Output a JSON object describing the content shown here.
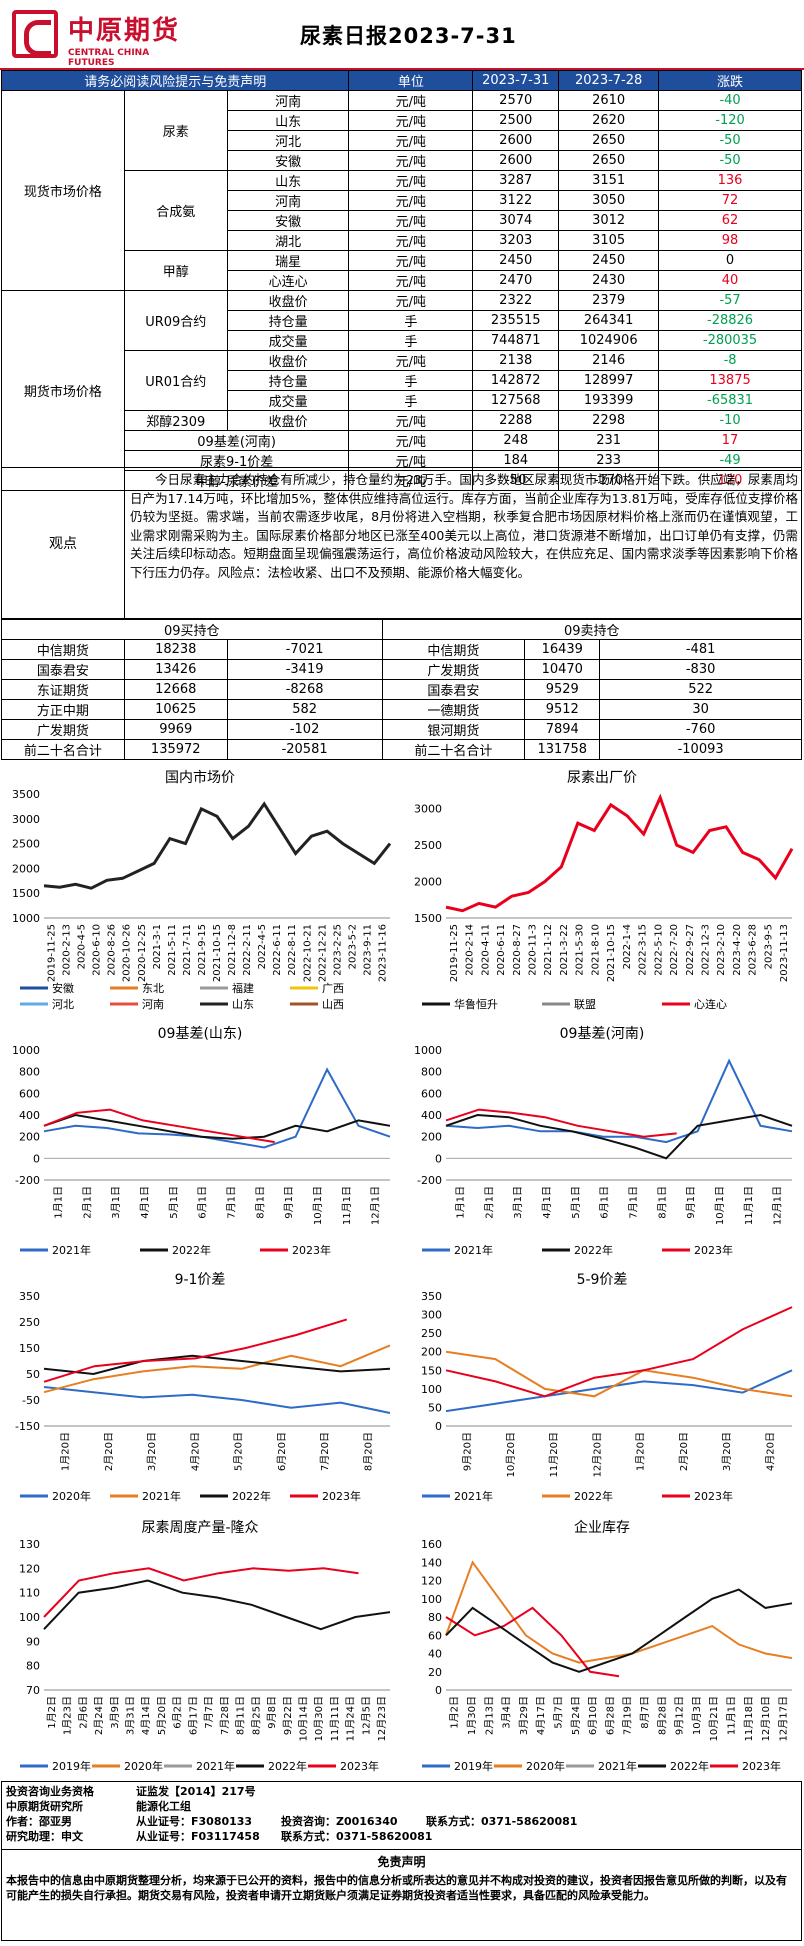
{
  "header": {
    "logo_cn": "中原期货",
    "logo_en": "CENTRAL CHINA FUTURES",
    "title": "尿素日报2023-7-31"
  },
  "table": {
    "notice": "请务必阅读风险提示与免责声明",
    "col_unit": "单位",
    "col_d1": "2023-7-31",
    "col_d2": "2023-7-28",
    "col_chg": "涨跌",
    "spot_label": "现货市场价格",
    "futures_label": "期货市场价格",
    "spot": [
      {
        "g": "尿素",
        "rows": [
          [
            "河南",
            "元/吨",
            "2570",
            "2610",
            "-40"
          ],
          [
            "山东",
            "元/吨",
            "2500",
            "2620",
            "-120"
          ],
          [
            "河北",
            "元/吨",
            "2600",
            "2650",
            "-50"
          ],
          [
            "安徽",
            "元/吨",
            "2600",
            "2650",
            "-50"
          ]
        ]
      },
      {
        "g": "合成氨",
        "rows": [
          [
            "山东",
            "元/吨",
            "3287",
            "3151",
            "136"
          ],
          [
            "河南",
            "元/吨",
            "3122",
            "3050",
            "72"
          ],
          [
            "安徽",
            "元/吨",
            "3074",
            "3012",
            "62"
          ],
          [
            "湖北",
            "元/吨",
            "3203",
            "3105",
            "98"
          ]
        ]
      },
      {
        "g": "甲醇",
        "rows": [
          [
            "瑞星",
            "元/吨",
            "2450",
            "2450",
            "0"
          ],
          [
            "心连心",
            "元/吨",
            "2470",
            "2430",
            "40"
          ]
        ]
      }
    ],
    "futures": [
      {
        "g": "UR09合约",
        "rows": [
          [
            "收盘价",
            "元/吨",
            "2322",
            "2379",
            "-57"
          ],
          [
            "持仓量",
            "手",
            "235515",
            "264341",
            "-28826"
          ],
          [
            "成交量",
            "手",
            "744871",
            "1024906",
            "-280035"
          ]
        ]
      },
      {
        "g": "UR01合约",
        "rows": [
          [
            "收盘价",
            "元/吨",
            "2138",
            "2146",
            "-8"
          ],
          [
            "持仓量",
            "手",
            "142872",
            "128997",
            "13875"
          ],
          [
            "成交量",
            "手",
            "127568",
            "193399",
            "-65831"
          ]
        ]
      },
      {
        "g": "郑醇2309",
        "rows": [
          [
            "收盘价",
            "元/吨",
            "2288",
            "2298",
            "-10"
          ]
        ]
      }
    ],
    "spreads": [
      [
        "09基差(河南)",
        "元/吨",
        "248",
        "231",
        "17"
      ],
      [
        "尿素9-1价差",
        "元/吨",
        "184",
        "233",
        "-49"
      ],
      [
        "甲醇-尿素价差",
        "元/吨",
        "-50",
        "-170",
        "120"
      ]
    ]
  },
  "observation": {
    "label": "观点",
    "text": "今日尿素主力合约持仓有所减少，持仓量约为23万手。国内多数地区尿素现货市场价格开始下跌。供应端，尿素周均日产为17.14万吨，环比增加5%，整体供应维持高位运行。库存方面，当前企业库存为13.81万吨，受库存低位支撑价格仍较为坚挺。需求端，当前农需逐步收尾，8月份将进入空档期，秋季复合肥市场因原材料价格上涨而仍在谨慎观望，工业需求刚需采购为主。国际尿素价格部分地区已涨至400美元以上高位，港口货源港不断增加，出口订单仍有支撑，仍需关注后续印标动态。短期盘面呈现偏强震荡运行，高位价格波动风险较大，在供应充足、国内需求淡季等因素影响下价格下行压力仍存。风险点：法检收紧、出口不及预期、能源价格大幅变化。"
  },
  "positions": {
    "buy_title": "09买持仓",
    "sell_title": "09卖持仓",
    "rows": [
      [
        "中信期货",
        "18238",
        "-7021",
        "中信期货",
        "16439",
        "-481"
      ],
      [
        "国泰君安",
        "13426",
        "-3419",
        "广发期货",
        "10470",
        "-830"
      ],
      [
        "东证期货",
        "12668",
        "-8268",
        "国泰君安",
        "9529",
        "522"
      ],
      [
        "方正中期",
        "10625",
        "582",
        "一德期货",
        "9512",
        "30"
      ],
      [
        "广发期货",
        "9969",
        "-102",
        "银河期货",
        "7894",
        "-760"
      ],
      [
        "前二十名合计",
        "135972",
        "-20581",
        "前二十名合计",
        "131758",
        "-10093"
      ]
    ]
  },
  "colors": {
    "up": "#e8001c",
    "down": "#00a050",
    "header_blue": "#1f4e9c",
    "brand": "#c8102e"
  },
  "charts": [
    {
      "id": "c1",
      "title": "国内市场价",
      "type": "line",
      "ylim": [
        1000,
        3500
      ],
      "yticks": [
        "1000",
        "1500",
        "2000",
        "2500",
        "3000",
        "3500"
      ],
      "xticks": [
        "2019-11-25",
        "2020-2-13",
        "2020-4-5",
        "2020-6-10",
        "2020-8-26",
        "2020-10-26",
        "2020-12-25",
        "2021-3-1",
        "2021-5-11",
        "2021-7-11",
        "2021-9-15",
        "2021-10-15",
        "2021-12-8",
        "2022-2-11",
        "2022-4-5",
        "2022-6-11",
        "2022-8-11",
        "2022-10-21",
        "2022-12-21",
        "2023-2-25",
        "2023-5-2",
        "2023-9-11",
        "2023-11-16"
      ],
      "legend": [
        [
          "安徽",
          "#1f4e9c"
        ],
        [
          "东北",
          "#e67e22"
        ],
        [
          "福建",
          "#999999"
        ],
        [
          "广西",
          "#f1c40f"
        ],
        [
          "河北",
          "#5dade2"
        ],
        [
          "河南",
          "#e74c3c"
        ],
        [
          "山东",
          "#222222"
        ],
        [
          "山西",
          "#a0522d"
        ]
      ],
      "series": [
        {
          "name": "山东",
          "values": [
            1650,
            1620,
            1680,
            1600,
            1760,
            1800,
            1950,
            2100,
            2600,
            2500,
            3200,
            3050,
            2600,
            2850,
            3300,
            2800,
            2300,
            2650,
            2750,
            2500,
            2300,
            2100,
            2500
          ]
        }
      ]
    },
    {
      "id": "c2",
      "title": "尿素出厂价",
      "type": "line",
      "ylim": [
        1500,
        3200
      ],
      "yticks": [
        "1500",
        "2000",
        "2500",
        "3000"
      ],
      "xticks": [
        "2019-11-25",
        "2020-2-14",
        "2020-4-11",
        "2020-6-11",
        "2020-8-27",
        "2020-11-3",
        "2021-1-12",
        "2021-3-22",
        "2021-5-30",
        "2021-8-10",
        "2021-10-15",
        "2022-1-4",
        "2022-3-15",
        "2022-5-10",
        "2022-7-20",
        "2022-9-27",
        "2022-12-3",
        "2023-2-10",
        "2023-4-20",
        "2023-6-28",
        "2023-9-5",
        "2023-11-13"
      ],
      "legend": [
        [
          "华鲁恒升",
          "#111111"
        ],
        [
          "联盟",
          "#888888"
        ],
        [
          "心连心",
          "#e8001c"
        ]
      ],
      "series": [
        {
          "name": "心连心",
          "values": [
            1650,
            1600,
            1700,
            1650,
            1800,
            1850,
            2000,
            2200,
            2800,
            2700,
            3050,
            2900,
            2650,
            3150,
            2500,
            2400,
            2700,
            2750,
            2400,
            2300,
            2050,
            2450
          ]
        }
      ]
    },
    {
      "id": "c3",
      "title": "09基差(山东)",
      "type": "line",
      "ylim": [
        -200,
        1000
      ],
      "yticks": [
        "-200",
        "0",
        "200",
        "400",
        "600",
        "800",
        "1000"
      ],
      "xticks": [
        "1月1日",
        "2月1日",
        "3月1日",
        "4月1日",
        "5月1日",
        "6月1日",
        "7月1日",
        "8月1日",
        "9月1日",
        "10月1日",
        "11月1日",
        "12月1日"
      ],
      "legend": [
        [
          "2021年",
          "#2e6bc6"
        ],
        [
          "2022年",
          "#111111"
        ],
        [
          "2023年",
          "#e8001c"
        ]
      ],
      "series": [
        {
          "name": "2021年",
          "values": [
            250,
            300,
            280,
            230,
            220,
            200,
            150,
            100,
            200,
            820,
            300,
            200
          ]
        },
        {
          "name": "2022年",
          "values": [
            300,
            400,
            350,
            300,
            250,
            200,
            180,
            200,
            300,
            250,
            350,
            300
          ]
        },
        {
          "name": "2023年",
          "values": [
            300,
            420,
            450,
            350,
            300,
            250,
            200,
            150
          ]
        }
      ]
    },
    {
      "id": "c4",
      "title": "09基差(河南)",
      "type": "line",
      "ylim": [
        -200,
        1000
      ],
      "yticks": [
        "-200",
        "0",
        "200",
        "400",
        "600",
        "800",
        "1000"
      ],
      "xticks": [
        "1月1日",
        "2月1日",
        "3月1日",
        "4月1日",
        "5月1日",
        "6月1日",
        "7月1日",
        "8月1日",
        "9月1日",
        "10月1日",
        "11月1日",
        "12月1日"
      ],
      "legend": [
        [
          "2021年",
          "#2e6bc6"
        ],
        [
          "2022年",
          "#111111"
        ],
        [
          "2023年",
          "#e8001c"
        ]
      ],
      "series": [
        {
          "name": "2021年",
          "values": [
            300,
            280,
            300,
            250,
            250,
            200,
            200,
            150,
            250,
            900,
            300,
            250
          ]
        },
        {
          "name": "2022年",
          "values": [
            300,
            400,
            380,
            300,
            250,
            180,
            100,
            0,
            300,
            350,
            400,
            300
          ]
        },
        {
          "name": "2023年",
          "values": [
            350,
            450,
            420,
            380,
            300,
            250,
            200,
            230
          ]
        }
      ]
    },
    {
      "id": "c5",
      "title": "9-1价差",
      "type": "line",
      "ylim": [
        -150,
        350
      ],
      "yticks": [
        "-150",
        "-50",
        "50",
        "150",
        "250",
        "350"
      ],
      "xticks": [
        "1月20日",
        "2月20日",
        "3月20日",
        "4月20日",
        "5月20日",
        "6月20日",
        "7月20日",
        "8月20日"
      ],
      "legend": [
        [
          "2020年",
          "#2e6bc6"
        ],
        [
          "2021年",
          "#e67e22"
        ],
        [
          "2022年",
          "#111111"
        ],
        [
          "2023年",
          "#e8001c"
        ]
      ],
      "series": [
        {
          "name": "2020年",
          "values": [
            0,
            -20,
            -40,
            -30,
            -50,
            -80,
            -60,
            -100
          ]
        },
        {
          "name": "2021年",
          "values": [
            -20,
            30,
            60,
            80,
            70,
            120,
            80,
            160
          ]
        },
        {
          "name": "2022年",
          "values": [
            70,
            50,
            100,
            120,
            100,
            80,
            60,
            70
          ]
        },
        {
          "name": "2023年",
          "values": [
            20,
            80,
            100,
            110,
            150,
            200,
            260
          ]
        }
      ]
    },
    {
      "id": "c6",
      "title": "5-9价差",
      "type": "line",
      "ylim": [
        0,
        350
      ],
      "yticks": [
        "0",
        "50",
        "100",
        "150",
        "200",
        "250",
        "300",
        "350"
      ],
      "xticks": [
        "9月20日",
        "10月20日",
        "11月20日",
        "12月20日",
        "1月20日",
        "2月20日",
        "3月20日",
        "4月20日"
      ],
      "legend": [
        [
          "2021年",
          "#2e6bc6"
        ],
        [
          "2022年",
          "#e67e22"
        ],
        [
          "2023年",
          "#e8001c"
        ]
      ],
      "series": [
        {
          "name": "2021年",
          "values": [
            40,
            60,
            80,
            100,
            120,
            110,
            90,
            150
          ]
        },
        {
          "name": "2022年",
          "values": [
            200,
            180,
            100,
            80,
            150,
            130,
            100,
            80
          ]
        },
        {
          "name": "2023年",
          "values": [
            150,
            120,
            80,
            130,
            150,
            180,
            260,
            320
          ]
        }
      ]
    },
    {
      "id": "c7",
      "title": "尿素周度产量-隆众",
      "type": "line",
      "ylim": [
        70,
        130
      ],
      "yticks": [
        "70",
        "80",
        "90",
        "100",
        "110",
        "120",
        "130"
      ],
      "xticks": [
        "1月2日",
        "1月23日",
        "2月6日",
        "2月24日",
        "3月9日",
        "3月31日",
        "4月14日",
        "5月20日",
        "6月2日",
        "6月17日",
        "7月7日",
        "7月28日",
        "8月11日",
        "8月25日",
        "9月8日",
        "9月22日",
        "10月14日",
        "10月30日",
        "11月11日",
        "11月24日",
        "12月5日",
        "12月23日"
      ],
      "legend": [
        [
          "2019年",
          "#2e6bc6"
        ],
        [
          "2020年",
          "#e67e22"
        ],
        [
          "2021年",
          "#999999"
        ],
        [
          "2022年",
          "#111111"
        ],
        [
          "2023年",
          "#e8001c"
        ]
      ],
      "series": [
        {
          "name": "2023年",
          "values": [
            100,
            115,
            118,
            120,
            115,
            118,
            120,
            119,
            120,
            118
          ]
        },
        {
          "name": "2022年",
          "values": [
            95,
            110,
            112,
            115,
            110,
            108,
            105,
            100,
            95,
            100,
            102
          ]
        }
      ]
    },
    {
      "id": "c8",
      "title": "企业库存",
      "type": "line",
      "ylim": [
        0,
        160
      ],
      "yticks": [
        "0",
        "20",
        "40",
        "60",
        "80",
        "100",
        "120",
        "140",
        "160"
      ],
      "xticks": [
        "1月2日",
        "1月30日",
        "2月13日",
        "3月4日",
        "3月29日",
        "4月17日",
        "5月7日",
        "5月24日",
        "6月10日",
        "6月28日",
        "7月19日",
        "8月7日",
        "8月28日",
        "9月12日",
        "10月3日",
        "10月21日",
        "11月1日",
        "11月18日",
        "12月10日",
        "12月17日"
      ],
      "legend": [
        [
          "2019年",
          "#2e6bc6"
        ],
        [
          "2020年",
          "#e67e22"
        ],
        [
          "2021年",
          "#999999"
        ],
        [
          "2022年",
          "#111111"
        ],
        [
          "2023年",
          "#e8001c"
        ]
      ],
      "series": [
        {
          "name": "2020年",
          "values": [
            60,
            140,
            100,
            60,
            40,
            30,
            35,
            40,
            50,
            60,
            70,
            50,
            40,
            35
          ]
        },
        {
          "name": "2023年",
          "values": [
            80,
            60,
            70,
            90,
            60,
            20,
            15
          ]
        },
        {
          "name": "2022年",
          "values": [
            60,
            90,
            70,
            50,
            30,
            20,
            30,
            40,
            60,
            80,
            100,
            110,
            90,
            95
          ]
        }
      ]
    }
  ],
  "footer": {
    "l1a": "投资咨询业务资格",
    "l1b": "证监发【2014】217号",
    "l2a": "中原期货研究所",
    "l2b": "能源化工组",
    "l3a": "作者：邵亚男",
    "l3b": "从业证号：F3080133",
    "l3c": "投资咨询：Z0016340",
    "l3d": "联系方式：0371-58620081",
    "l4a": "研究助理：申文",
    "l4b": "从业证号：F03117458",
    "l4c": "联系方式：0371-58620081",
    "disc_title": "免责声明",
    "disc_text": "本报告中的信息由中原期货整理分析，均来源于已公开的资料，报告中的信息分析或所表达的意见并不构成对投资的建议，投资者因报告意见所做的判断，以及有可能产生的损失自行承担。期货交易有风险，投资者申请开立期货账户须满足证券期货投资者适当性要求，具备匹配的风险承受能力。"
  }
}
